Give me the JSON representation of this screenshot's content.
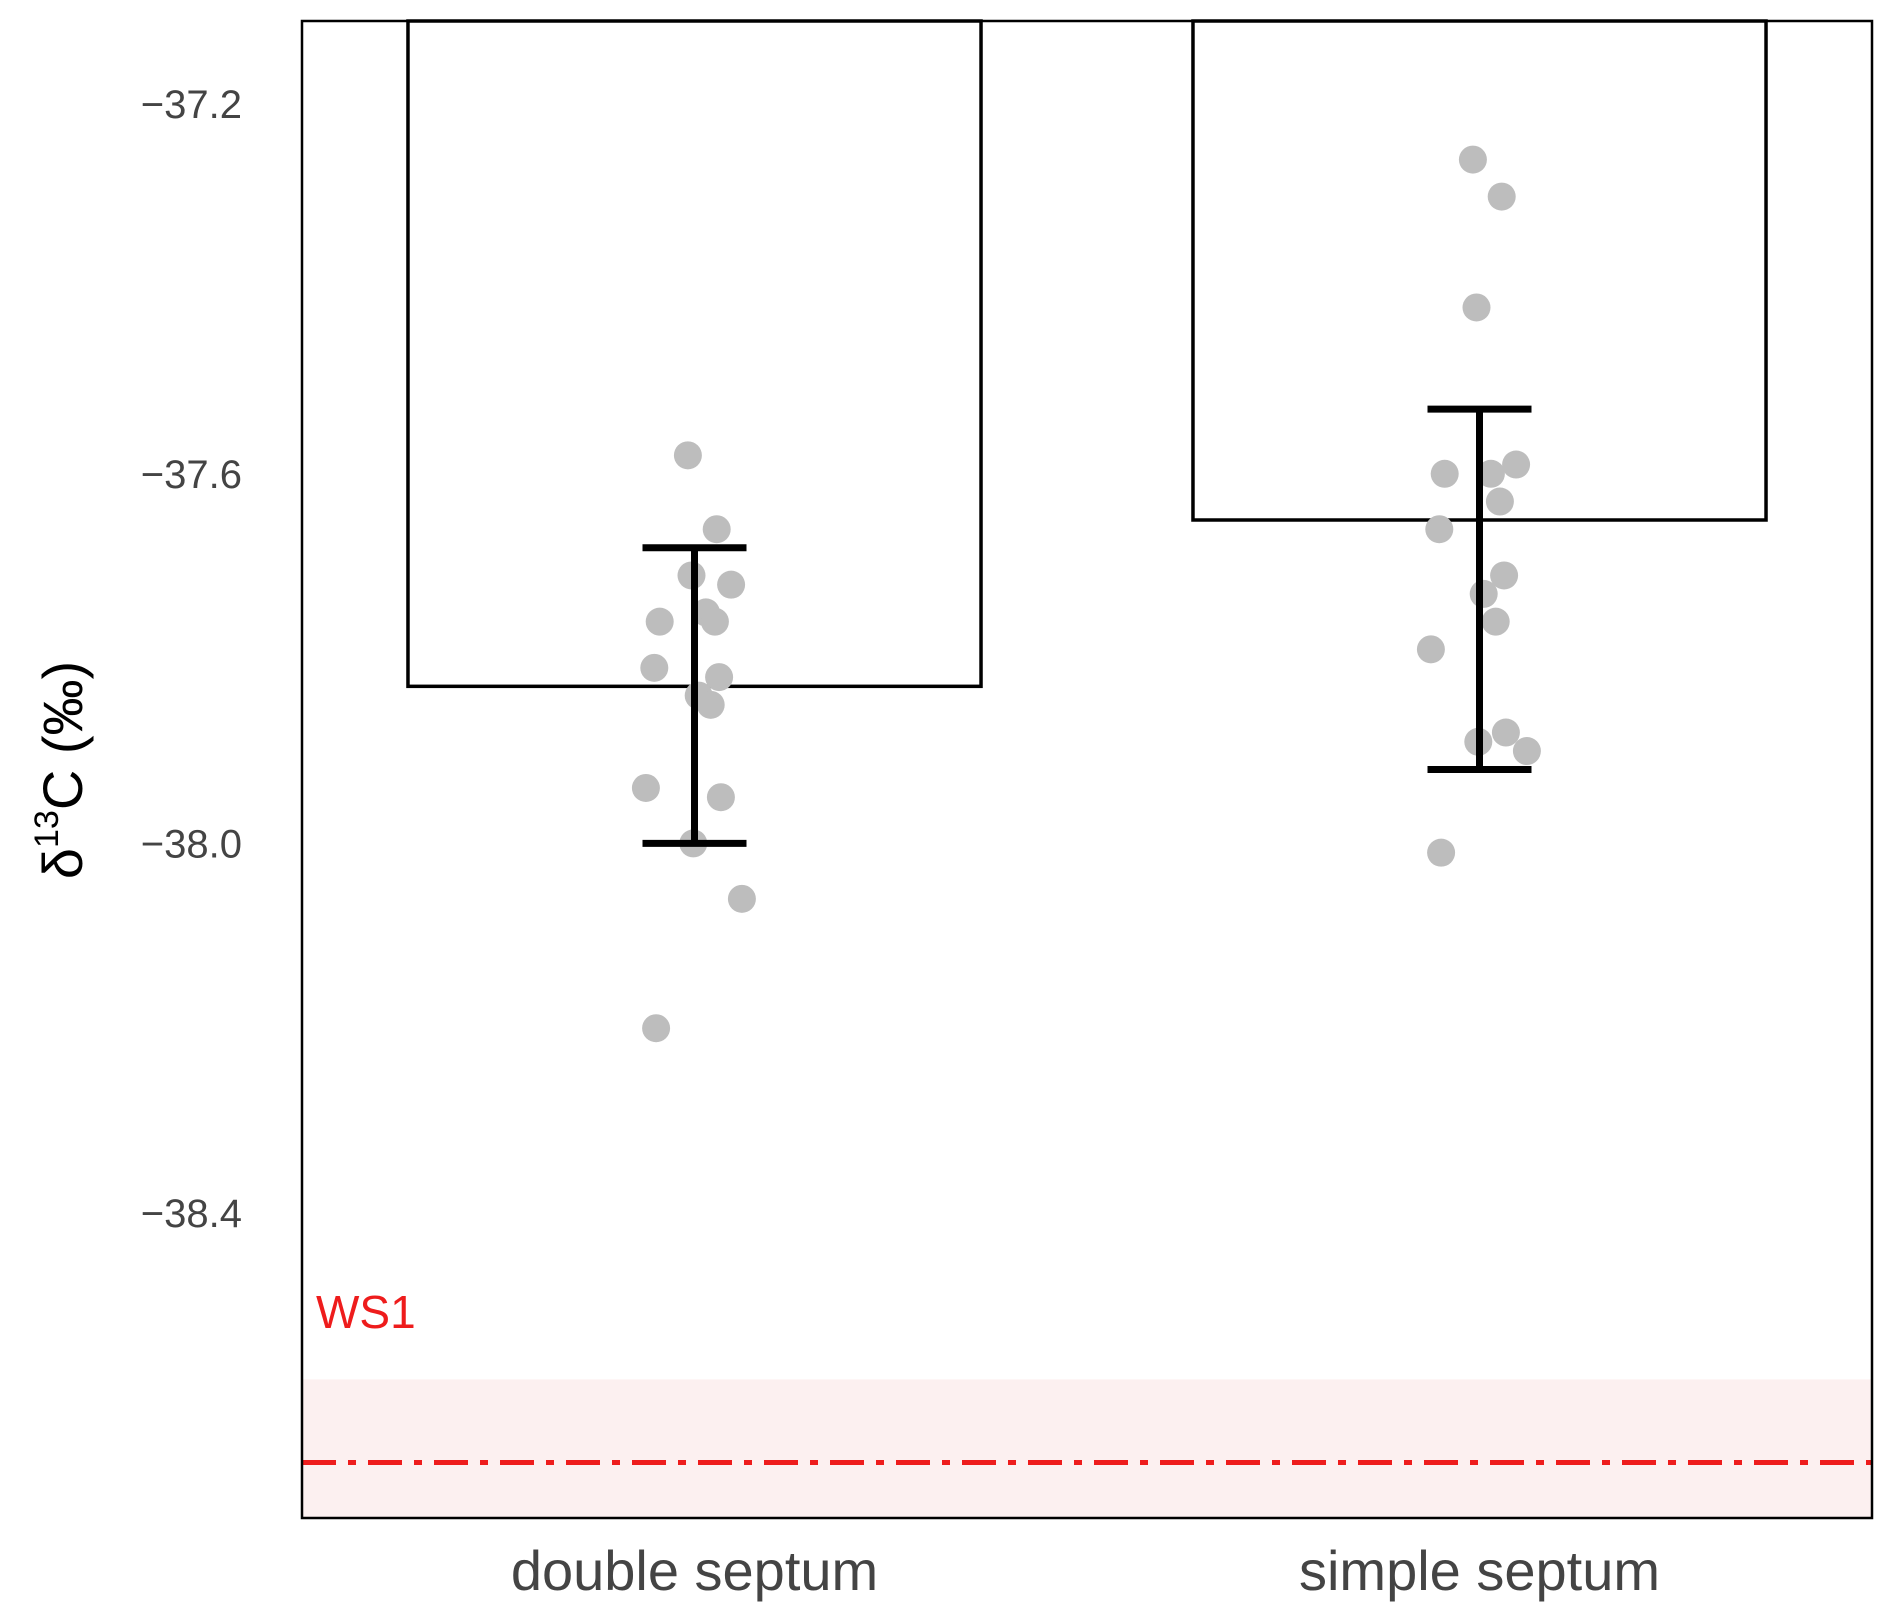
{
  "chart_data": {
    "type": "bar",
    "categories": [
      "double septum",
      "simple septum"
    ],
    "values": [
      -37.83,
      -37.65
    ],
    "error_bars": [
      {
        "low": -38.0,
        "high": -37.68
      },
      {
        "low": -37.92,
        "high": -37.53
      }
    ],
    "points": [
      [
        -37.58,
        -37.66,
        -37.71,
        -37.72,
        -37.75,
        -37.76,
        -37.76,
        -37.81,
        -37.82,
        -37.84,
        -37.85,
        -37.94,
        -37.95,
        -38.0,
        -38.06,
        -38.2
      ],
      [
        -37.26,
        -37.3,
        -37.42,
        -37.59,
        -37.6,
        -37.6,
        -37.63,
        -37.66,
        -37.71,
        -37.73,
        -37.76,
        -37.79,
        -37.88,
        -37.89,
        -37.9,
        -38.01
      ]
    ],
    "ylabel": {
      "prefix": "δ",
      "sup": "13",
      "main": "C (‰)"
    },
    "yticks": [
      -37.2,
      -37.6,
      -38.0,
      -38.4
    ],
    "ytick_labels": [
      "−37.2",
      "−37.6",
      "−38.0",
      "−38.4"
    ],
    "ylim": [
      -38.73,
      -37.11
    ],
    "reference": {
      "label": "WS1",
      "value": -38.67,
      "band": [
        -38.73,
        -38.58
      ],
      "color": "#ee1c1c",
      "band_color": "#fcf0f0"
    },
    "bar_fill": "#ffffff",
    "bar_stroke": "#000000",
    "point_color": "#bdbdbd",
    "grid": false
  }
}
